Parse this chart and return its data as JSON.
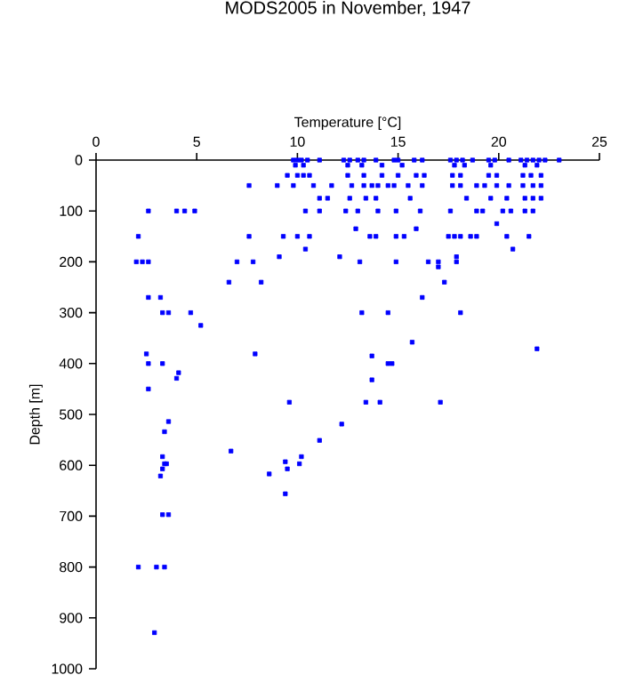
{
  "chart_data": {
    "type": "scatter",
    "title": "MODS2005 in November, 1947",
    "xlabel": "Temperature [°C]",
    "ylabel": "Depth [m]",
    "xlim": [
      0,
      25
    ],
    "ylim": [
      1000,
      0
    ],
    "xticks": [
      0,
      5,
      10,
      15,
      20,
      25
    ],
    "yticks": [
      0,
      100,
      200,
      300,
      400,
      500,
      600,
      700,
      800,
      900,
      1000
    ],
    "marker": "square",
    "color": "#0000ff",
    "x": [
      9.8,
      10,
      10.2,
      10.5,
      11.1,
      12.3,
      12.6,
      13,
      13.3,
      13.9,
      14.8,
      15,
      15.8,
      16.2,
      17.6,
      17.9,
      18.2,
      18.7,
      19.5,
      19.8,
      20.5,
      21.1,
      21.4,
      21.7,
      22,
      22.3,
      23,
      9.9,
      10.3,
      12.5,
      13.2,
      14.2,
      15.2,
      17.8,
      18.3,
      19.6,
      21.3,
      21.9,
      9.5,
      10,
      10.3,
      10.6,
      12.5,
      13.3,
      14.2,
      15,
      15.9,
      16.3,
      17.7,
      18.1,
      19.5,
      19.9,
      21.2,
      21.6,
      22.1,
      7.6,
      9,
      9.8,
      10.8,
      11.7,
      12.7,
      13.3,
      13.7,
      14,
      14.5,
      14.8,
      15.5,
      16.2,
      17.7,
      18.1,
      18.9,
      19.3,
      19.9,
      20.5,
      21.2,
      21.7,
      22.1,
      11.1,
      11.5,
      12.6,
      13.4,
      13.9,
      15.6,
      18.4,
      19.6,
      20.4,
      21.3,
      21.7,
      22.1,
      2.6,
      4,
      4.4,
      4.9,
      10.4,
      11.1,
      12.4,
      13,
      14,
      14.9,
      16.1,
      17.6,
      18.9,
      19.2,
      20.2,
      20.6,
      21.3,
      21.7,
      19.9,
      12.9,
      15.9,
      2.1,
      7.6,
      9.3,
      10,
      10.6,
      13.6,
      13.9,
      14.9,
      15.3,
      17.5,
      17.8,
      18.1,
      18.6,
      18.9,
      20.4,
      21.5,
      10.4,
      20.7,
      9.1,
      12.1,
      17.9,
      2.0,
      2.3,
      2.6,
      7.0,
      7.8,
      13.1,
      14.9,
      16.5,
      17.0,
      17.9,
      17.0,
      6.6,
      8.2,
      17.3,
      2.6,
      3.2,
      16.2,
      3.3,
      3.6,
      4.7,
      13.2,
      14.5,
      18.1,
      5.2,
      15.7,
      21.9,
      2.5,
      7.9,
      13.7,
      2.6,
      3.3,
      14.5,
      14.7,
      4.1,
      4.0,
      13.7,
      2.6,
      9.6,
      13.4,
      14.1,
      17.1,
      3.6,
      12.2,
      3.4,
      11.1,
      6.7,
      3.3,
      10.2,
      9.4,
      3.4,
      3.5,
      10.1,
      3.3,
      9.5,
      8.6,
      3.2,
      9.4,
      3.3,
      3.6,
      2.1,
      3.0,
      3.4,
      2.9
    ],
    "values": [
      0,
      0,
      0,
      0,
      0,
      0,
      0,
      0,
      0,
      0,
      0,
      0,
      0,
      0,
      0,
      0,
      0,
      0,
      0,
      0,
      0,
      0,
      0,
      0,
      0,
      0,
      0,
      10,
      10,
      10,
      10,
      10,
      10,
      10,
      10,
      10,
      10,
      10,
      30,
      30,
      30,
      30,
      30,
      30,
      30,
      30,
      30,
      30,
      30,
      30,
      30,
      30,
      30,
      30,
      30,
      50,
      50,
      50,
      50,
      50,
      50,
      50,
      50,
      50,
      50,
      50,
      50,
      50,
      50,
      50,
      50,
      50,
      50,
      50,
      50,
      50,
      50,
      75,
      75,
      75,
      75,
      75,
      75,
      75,
      75,
      75,
      75,
      75,
      75,
      100,
      100,
      100,
      100,
      100,
      100,
      100,
      100,
      100,
      100,
      100,
      100,
      100,
      100,
      100,
      100,
      100,
      100,
      125,
      135,
      135,
      150,
      150,
      150,
      150,
      150,
      150,
      150,
      150,
      150,
      150,
      150,
      150,
      150,
      150,
      150,
      150,
      175,
      175,
      190,
      190,
      190,
      200,
      200,
      200,
      200,
      200,
      200,
      200,
      200,
      200,
      200,
      210,
      240,
      240,
      240,
      270,
      270,
      270,
      300,
      300,
      300,
      300,
      300,
      300,
      325,
      358,
      371,
      381,
      381,
      385,
      400,
      400,
      400,
      400,
      418,
      429,
      432,
      450,
      476,
      476,
      476,
      476,
      514,
      519,
      534,
      551,
      572,
      583,
      583,
      593,
      597,
      597,
      597,
      607,
      607,
      617,
      621,
      656,
      697,
      697,
      800,
      800,
      800,
      929
    ]
  }
}
